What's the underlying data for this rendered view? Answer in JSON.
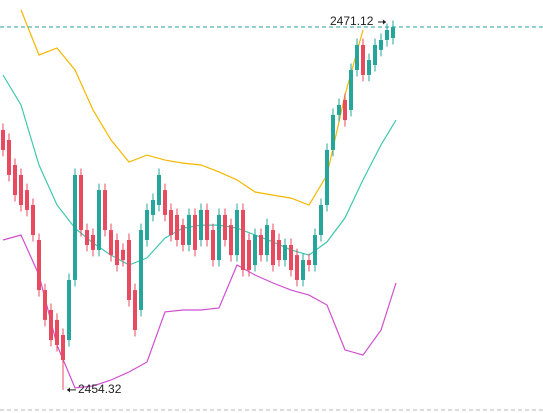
{
  "chart_data": {
    "type": "candlestick",
    "open": [
      2466.35,
      2465.89,
      2464.73,
      2464.27,
      2463.57,
      2462.88,
      2461.26,
      2458.94,
      2458.02,
      2457.56,
      2456.86,
      2456.63,
      2459.41,
      2464.27,
      2461.72,
      2461.49,
      2460.8,
      2463.57,
      2461.72,
      2461.26,
      2460.8,
      2461.26,
      2458.94,
      2458.02,
      2461.26,
      2462.42,
      2462.88,
      2463.57,
      2462.65,
      2462.42,
      2461.95,
      2461.03,
      2462.42,
      2461.26,
      2462.65,
      2461.72,
      2460.33,
      2462.42,
      2461.95,
      2460.56,
      2462.65,
      2461.26,
      2460.1,
      2461.49,
      2460.56,
      2461.72,
      2461.26,
      2460.33,
      2461.03,
      2460.56,
      2459.41,
      2460.33,
      2460.1,
      2461.49,
      2462.88,
      2465.43,
      2467.05,
      2467.74,
      2467.28,
      2469.13,
      2470.29,
      2468.9,
      2469.36,
      2470.06,
      2470.52,
      2470.61
    ],
    "high": [
      2466.65,
      2466.19,
      2465.03,
      2464.57,
      2463.87,
      2463.18,
      2461.56,
      2459.24,
      2458.32,
      2457.86,
      2457.16,
      2459.71,
      2464.57,
      2464.57,
      2462.02,
      2461.79,
      2463.87,
      2463.87,
      2462.02,
      2461.56,
      2461.1,
      2461.56,
      2459.24,
      2462.02,
      2462.95,
      2463.41,
      2464.57,
      2463.87,
      2462.95,
      2462.72,
      2462.25,
      2462.72,
      2462.72,
      2462.95,
      2462.95,
      2462.02,
      2462.72,
      2462.72,
      2462.25,
      2462.95,
      2462.95,
      2461.56,
      2461.79,
      2461.79,
      2462.25,
      2462.02,
      2461.56,
      2461.33,
      2461.33,
      2460.86,
      2460.63,
      2460.63,
      2461.79,
      2463.18,
      2465.73,
      2467.35,
      2467.81,
      2468.04,
      2469.43,
      2470.59,
      2470.59,
      2469.89,
      2470.59,
      2470.82,
      2471.28,
      2471.42
    ],
    "low": [
      2465.13,
      2463.97,
      2463.04,
      2462.58,
      2462.35,
      2461.19,
      2458.64,
      2457.26,
      2456.33,
      2456.1,
      2454.32,
      2456.33,
      2459.11,
      2461.42,
      2460.73,
      2460.5,
      2460.5,
      2461.42,
      2460.26,
      2459.8,
      2460.03,
      2458.18,
      2456.79,
      2457.72,
      2460.96,
      2462.12,
      2462.58,
      2462.12,
      2461.19,
      2460.96,
      2460.73,
      2460.73,
      2460.5,
      2460.96,
      2460.96,
      2460.03,
      2460.03,
      2460.96,
      2460.26,
      2460.26,
      2459.57,
      2459.57,
      2459.8,
      2460.26,
      2460.26,
      2459.8,
      2460.03,
      2460.03,
      2459.57,
      2459.11,
      2459.11,
      2459.8,
      2459.8,
      2461.19,
      2462.58,
      2465.13,
      2466.75,
      2466.51,
      2466.98,
      2468.83,
      2468.6,
      2468.6,
      2469.06,
      2469.76,
      2470.22,
      2470.31
    ],
    "close": [
      2465.43,
      2464.27,
      2463.34,
      2462.88,
      2462.65,
      2461.49,
      2458.94,
      2457.56,
      2456.63,
      2456.4,
      2455.7,
      2459.41,
      2464.27,
      2461.72,
      2461.03,
      2460.8,
      2463.57,
      2461.72,
      2460.56,
      2460.1,
      2460.33,
      2458.48,
      2457.09,
      2461.72,
      2462.65,
      2463.11,
      2464.27,
      2462.42,
      2461.49,
      2461.26,
      2461.03,
      2462.42,
      2460.8,
      2462.65,
      2461.26,
      2460.33,
      2462.42,
      2461.26,
      2460.56,
      2462.65,
      2459.87,
      2459.87,
      2461.49,
      2460.56,
      2461.95,
      2460.1,
      2460.33,
      2461.03,
      2459.87,
      2459.41,
      2460.33,
      2460.1,
      2461.49,
      2462.88,
      2465.43,
      2467.05,
      2467.51,
      2466.81,
      2469.13,
      2470.29,
      2468.9,
      2469.59,
      2470.29,
      2470.52,
      2470.98,
      2471.12
    ],
    "up_color": "#26a69a",
    "down_color": "#e84a5f",
    "lines_x": [
      0,
      3,
      6,
      9,
      12,
      15,
      18,
      21,
      24,
      27,
      30,
      33,
      36,
      39,
      42,
      45,
      48,
      51,
      54,
      57,
      60,
      63,
      65.5
    ],
    "lines": [
      {
        "color": "#f5b700",
        "values": [
          null,
          2471.91,
          2469.82,
          2470.15,
          2469.13,
          2467.28,
          2465.89,
          2464.87,
          2465.19,
          2464.96,
          2464.82,
          2464.73,
          2464.41,
          2464.04,
          2463.48,
          2463.34,
          2463.2,
          2462.88,
          2464.27,
          2467.97,
          2470.98,
          null,
          null
        ]
      },
      {
        "color": "#3fc7b0",
        "values": [
          2468.9,
          2467.51,
          2464.73,
          2462.88,
          2461.81,
          2461.12,
          2460.56,
          2460.1,
          2460.43,
          2461.35,
          2461.81,
          2461.95,
          2461.95,
          2461.81,
          2461.49,
          2461.17,
          2460.8,
          2460.56,
          2461.17,
          2462.28,
          2464.04,
          2465.66,
          2466.81
        ]
      },
      {
        "color": "#d04fd0",
        "values": [
          2461.26,
          2461.49,
          2459.64,
          2456.4,
          2454.41,
          2454.5,
          2454.78,
          2455.15,
          2455.61,
          2457.93,
          2458.02,
          2458.02,
          2458.11,
          2460.1,
          2459.64,
          2459.27,
          2458.94,
          2458.71,
          2458.25,
          2456.17,
          2455.93,
          2457.09,
          2459.27
        ]
      }
    ],
    "last_price": 2471.12,
    "low_price": 2454.32,
    "low_index": 10,
    "xlim": [
      -0.5,
      90
    ],
    "ylim": [
      2453.25,
      2472.37
    ]
  }
}
